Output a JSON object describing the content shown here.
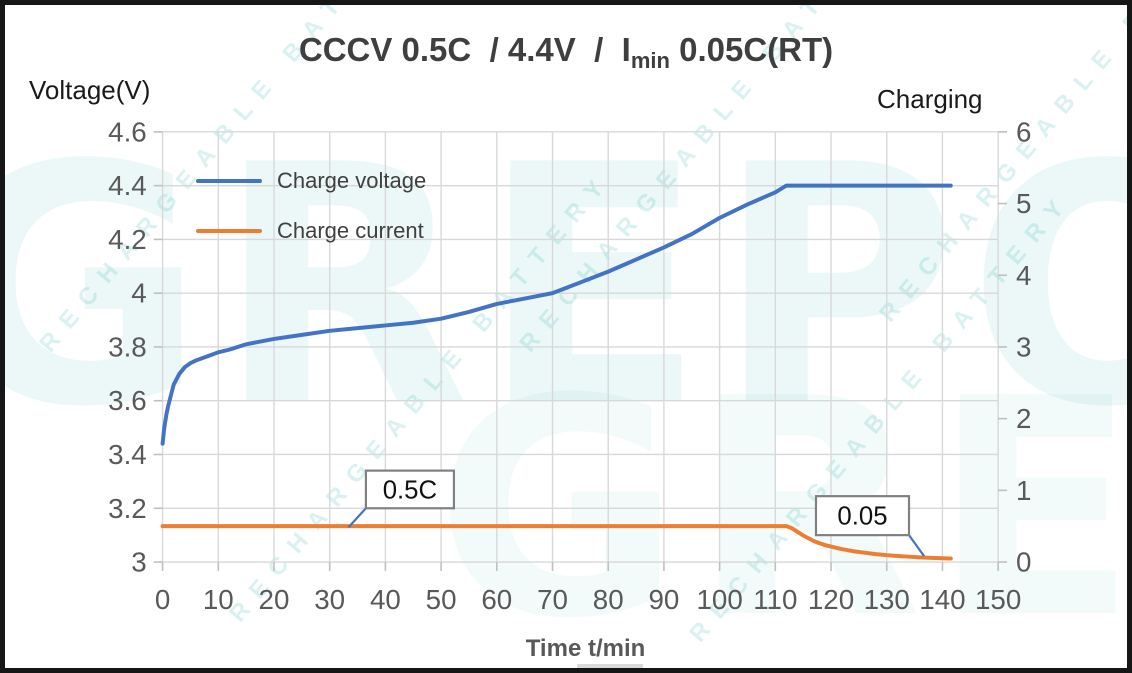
{
  "title": {
    "prefix": "CCCV 0.5C  / 4.4V  /  I",
    "subscript": "min",
    "suffix": " 0.05C(RT)"
  },
  "axes": {
    "left_title": "Voltage(V)",
    "right_title": "Charging",
    "x_title": "Time t/min"
  },
  "legend": [
    {
      "label": "Charge voltage",
      "color": "#4472C4"
    },
    {
      "label": "Charge current",
      "color": "#ED7D31"
    }
  ],
  "watermark": {
    "brand": "GREPOW",
    "tagline": "RECHARGEABLE BATTERY"
  },
  "colors": {
    "voltage_line": "#4472C4",
    "current_line": "#ED7D31",
    "gridline": "#D8D8D8",
    "axis": "#BFBFBF",
    "tick_text": "#595959",
    "annotation_border": "#808080",
    "watermark_teal": "#40BAB2"
  },
  "chart_data": {
    "type": "line",
    "title": "CCCV 0.5C / 4.4V / Imin 0.05C(RT)",
    "grid": true,
    "legend_position": "top-left-inside",
    "x_axis": {
      "label": "Time t/min",
      "min": 0,
      "max": 150,
      "tick_step": 10,
      "ticks": [
        0,
        10,
        20,
        30,
        40,
        50,
        60,
        70,
        80,
        90,
        100,
        110,
        120,
        130,
        140,
        150
      ]
    },
    "y_left": {
      "label": "Voltage(V)",
      "min": 3,
      "max": 4.6,
      "tick_step": 0.2,
      "ticks": [
        4.6,
        4.4,
        4.2,
        4,
        3.8,
        3.6,
        3.4,
        3.2,
        3
      ]
    },
    "y_right": {
      "label": "Charging",
      "min": 0,
      "max": 6,
      "tick_step": 1,
      "ticks": [
        6,
        5,
        4,
        3,
        2,
        1,
        0
      ]
    },
    "series": [
      {
        "name": "Charge voltage",
        "axis": "left",
        "color": "#4472C4",
        "points": [
          [
            0,
            3.44
          ],
          [
            0.3,
            3.5
          ],
          [
            0.7,
            3.55
          ],
          [
            1,
            3.58
          ],
          [
            1.5,
            3.62
          ],
          [
            2,
            3.66
          ],
          [
            3,
            3.7
          ],
          [
            4,
            3.725
          ],
          [
            5,
            3.74
          ],
          [
            6,
            3.75
          ],
          [
            8,
            3.765
          ],
          [
            10,
            3.78
          ],
          [
            12,
            3.79
          ],
          [
            15,
            3.81
          ],
          [
            20,
            3.83
          ],
          [
            25,
            3.845
          ],
          [
            30,
            3.86
          ],
          [
            35,
            3.87
          ],
          [
            40,
            3.88
          ],
          [
            45,
            3.89
          ],
          [
            50,
            3.905
          ],
          [
            55,
            3.93
          ],
          [
            60,
            3.96
          ],
          [
            65,
            3.98
          ],
          [
            70,
            4.0
          ],
          [
            75,
            4.04
          ],
          [
            80,
            4.08
          ],
          [
            85,
            4.125
          ],
          [
            90,
            4.17
          ],
          [
            95,
            4.22
          ],
          [
            100,
            4.28
          ],
          [
            105,
            4.33
          ],
          [
            110,
            4.375
          ],
          [
            112,
            4.4
          ],
          [
            120,
            4.4
          ],
          [
            130,
            4.4
          ],
          [
            141.5,
            4.4
          ]
        ]
      },
      {
        "name": "Charge current",
        "axis": "right",
        "color": "#ED7D31",
        "points": [
          [
            0,
            0.5
          ],
          [
            60,
            0.5
          ],
          [
            110,
            0.5
          ],
          [
            112,
            0.5
          ],
          [
            113,
            0.47
          ],
          [
            114,
            0.42
          ],
          [
            115,
            0.37
          ],
          [
            116,
            0.33
          ],
          [
            117,
            0.29
          ],
          [
            118,
            0.26
          ],
          [
            119,
            0.235
          ],
          [
            120,
            0.215
          ],
          [
            122,
            0.18
          ],
          [
            124,
            0.15
          ],
          [
            126,
            0.13
          ],
          [
            128,
            0.11
          ],
          [
            130,
            0.095
          ],
          [
            132,
            0.085
          ],
          [
            134,
            0.075
          ],
          [
            136,
            0.065
          ],
          [
            138,
            0.058
          ],
          [
            140,
            0.052
          ],
          [
            141.5,
            0.05
          ]
        ]
      }
    ],
    "annotations": [
      {
        "label": "0.5C",
        "box_t": [
          36.5,
          52.3
        ],
        "box_v": [
          3.2,
          3.34
        ],
        "leader": {
          "from_t": 36.5,
          "from_v": 3.2,
          "to_t": 33.4,
          "to_v": 3.13
        }
      },
      {
        "label": "0.05",
        "box_t": [
          117.3,
          134.0
        ],
        "box_v": [
          3.1,
          3.245
        ],
        "leader": {
          "from_t": 134.0,
          "from_v": 3.1,
          "to_t": 136.7,
          "to_v": 3.022
        }
      }
    ]
  }
}
